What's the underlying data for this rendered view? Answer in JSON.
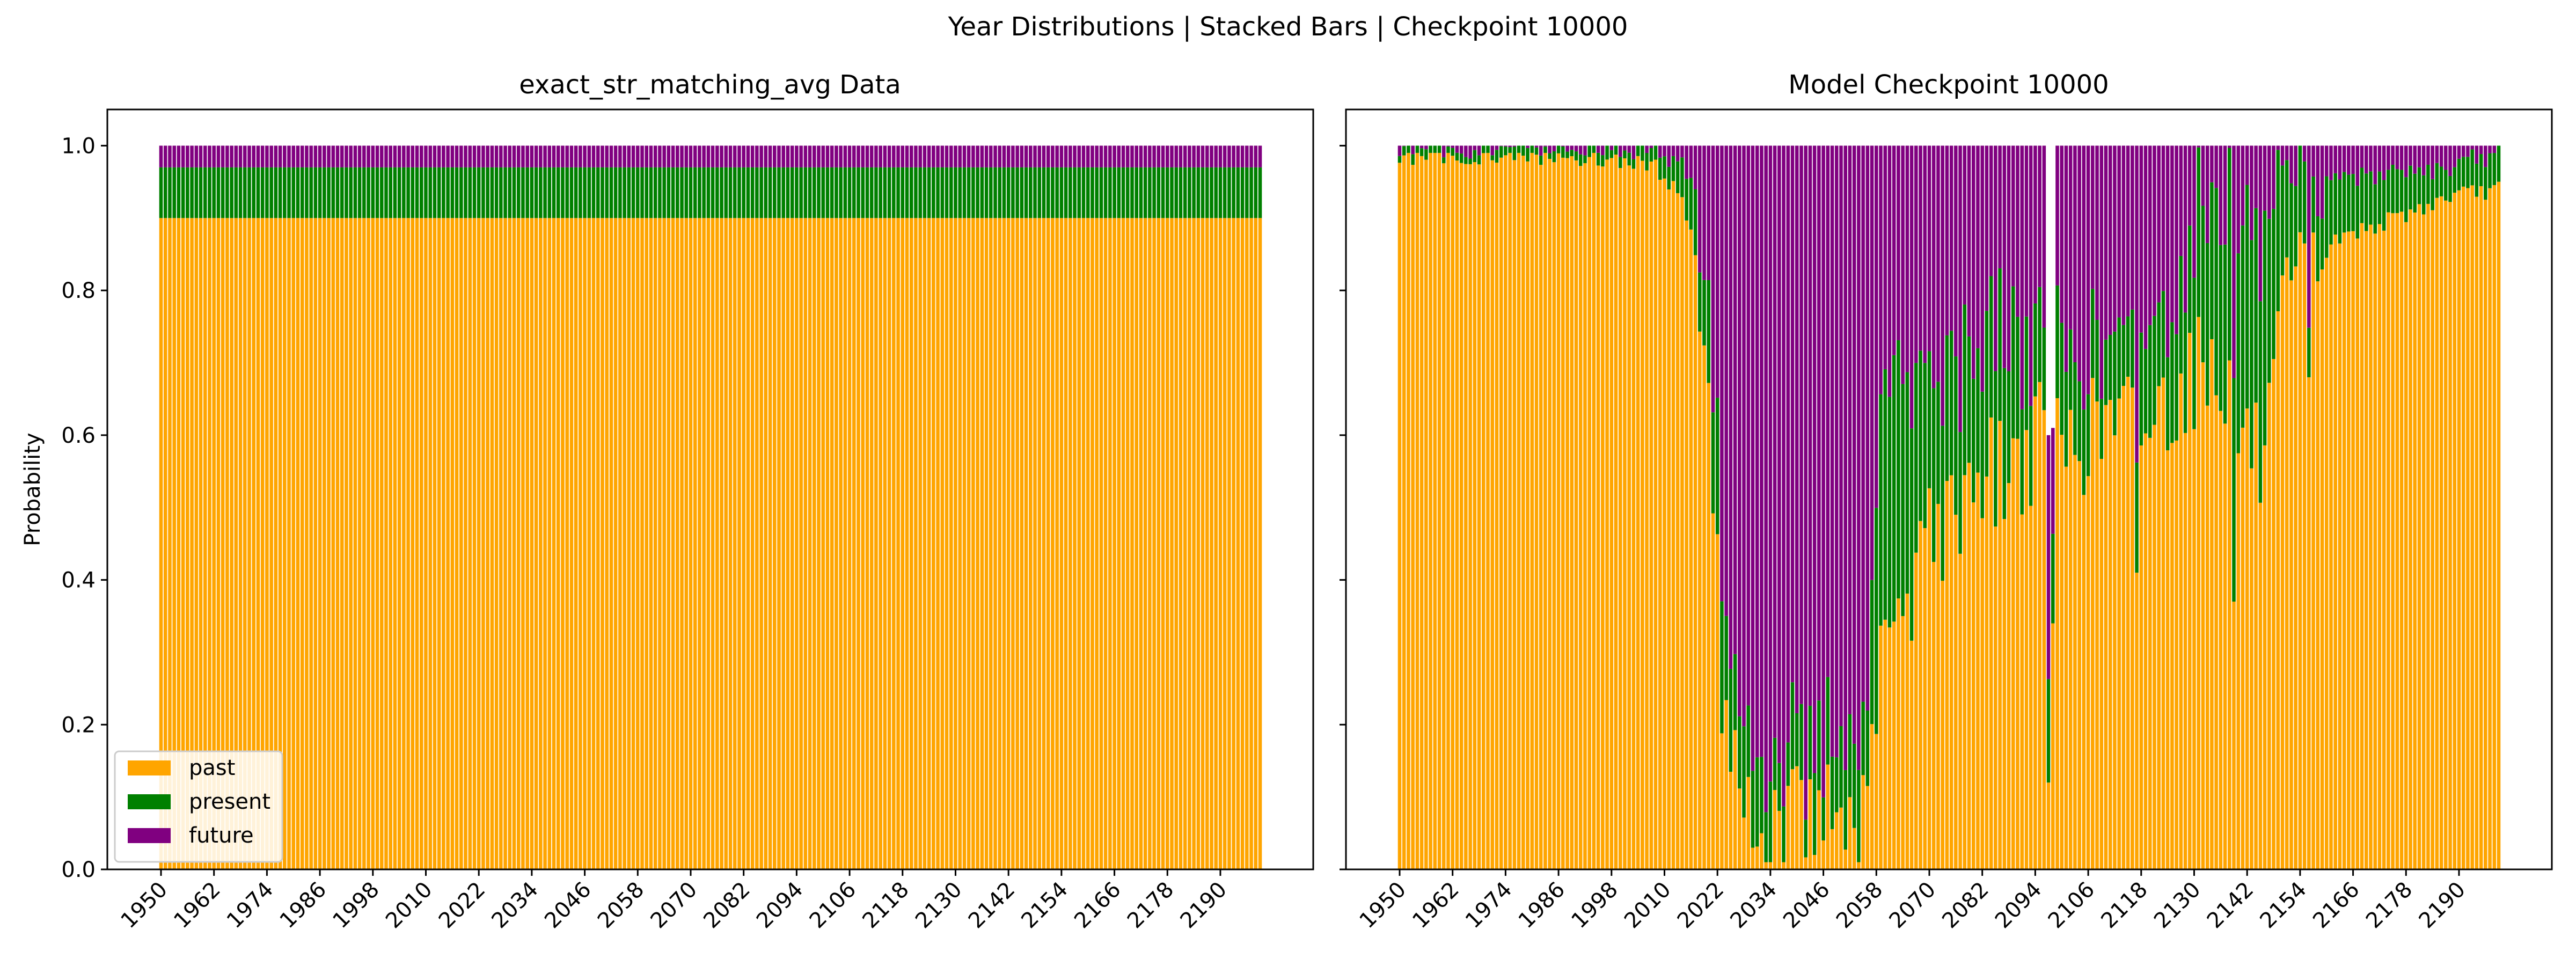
{
  "figure": {
    "suptitle": "Year Distributions | Stacked Bars | Checkpoint 10000"
  },
  "colors": {
    "past": "#ffa500",
    "present": "#008000",
    "future": "#800080"
  },
  "chart_data": [
    {
      "type": "bar",
      "stacked": true,
      "title": "exact_str_matching_avg Data",
      "xlabel": "",
      "ylabel": "Probability",
      "ylim": [
        0,
        1.05
      ],
      "yticks": [
        0.0,
        0.2,
        0.4,
        0.6,
        0.8,
        1.0
      ],
      "ytick_labels": [
        "0.0",
        "0.2",
        "0.4",
        "0.6",
        "0.8",
        "1.0"
      ],
      "xticks": [
        1950,
        1962,
        1974,
        1986,
        1998,
        2010,
        2022,
        2034,
        2046,
        2058,
        2070,
        2082,
        2094,
        2106,
        2118,
        2130,
        2142,
        2154,
        2166,
        2178,
        2190
      ],
      "year_range": [
        1950,
        2199
      ],
      "legend": {
        "position": "lower-left",
        "entries": [
          "past",
          "present",
          "future"
        ]
      },
      "series": [
        {
          "name": "past",
          "constant": 0.9
        },
        {
          "name": "present",
          "constant": 0.07
        },
        {
          "name": "future",
          "constant": 0.03
        }
      ]
    },
    {
      "type": "bar",
      "stacked": true,
      "title": "Model Checkpoint 10000",
      "xlabel": "",
      "ylabel": "",
      "ylim": [
        0,
        1.05
      ],
      "yticks": [
        0.0,
        0.2,
        0.4,
        0.6,
        0.8,
        1.0
      ],
      "xticks": [
        1950,
        1962,
        1974,
        1986,
        1998,
        2010,
        2022,
        2034,
        2046,
        2058,
        2070,
        2082,
        2094,
        2106,
        2118,
        2130,
        2142,
        2154,
        2166,
        2178,
        2190
      ],
      "year_range": [
        1950,
        2199
      ],
      "stack_order": [
        "past",
        "present",
        "future"
      ],
      "past_keypoints": [
        [
          1950,
          0.985
        ],
        [
          1980,
          0.985
        ],
        [
          2000,
          0.98
        ],
        [
          2008,
          0.97
        ],
        [
          2014,
          0.93
        ],
        [
          2018,
          0.82
        ],
        [
          2021,
          0.55
        ],
        [
          2023,
          0.25
        ],
        [
          2026,
          0.13
        ],
        [
          2030,
          0.08
        ],
        [
          2040,
          0.08
        ],
        [
          2050,
          0.07
        ],
        [
          2056,
          0.06
        ],
        [
          2058,
          0.25
        ],
        [
          2062,
          0.35
        ],
        [
          2066,
          0.32
        ],
        [
          2068,
          0.55
        ],
        [
          2072,
          0.45
        ],
        [
          2080,
          0.55
        ],
        [
          2088,
          0.55
        ],
        [
          2096,
          0.6
        ],
        [
          2100,
          0.58
        ],
        [
          2106,
          0.6
        ],
        [
          2112,
          0.62
        ],
        [
          2120,
          0.62
        ],
        [
          2126,
          0.66
        ],
        [
          2132,
          0.7
        ],
        [
          2136,
          0.7
        ],
        [
          2140,
          0.6
        ],
        [
          2142,
          0.6
        ],
        [
          2146,
          0.55
        ],
        [
          2150,
          0.75
        ],
        [
          2156,
          0.85
        ],
        [
          2166,
          0.88
        ],
        [
          2176,
          0.9
        ],
        [
          2188,
          0.93
        ],
        [
          2199,
          0.94
        ]
      ],
      "present_keypoints": [
        [
          1950,
          0.01
        ],
        [
          2000,
          0.015
        ],
        [
          2008,
          0.02
        ],
        [
          2014,
          0.05
        ],
        [
          2018,
          0.1
        ],
        [
          2021,
          0.15
        ],
        [
          2024,
          0.15
        ],
        [
          2030,
          0.1
        ],
        [
          2040,
          0.08
        ],
        [
          2050,
          0.1
        ],
        [
          2056,
          0.1
        ],
        [
          2058,
          0.3
        ],
        [
          2062,
          0.35
        ],
        [
          2066,
          0.3
        ],
        [
          2070,
          0.2
        ],
        [
          2080,
          0.2
        ],
        [
          2090,
          0.18
        ],
        [
          2100,
          0.12
        ],
        [
          2110,
          0.12
        ],
        [
          2120,
          0.12
        ],
        [
          2126,
          0.14
        ],
        [
          2130,
          0.2
        ],
        [
          2134,
          0.25
        ],
        [
          2140,
          0.28
        ],
        [
          2146,
          0.3
        ],
        [
          2150,
          0.15
        ],
        [
          2156,
          0.1
        ],
        [
          2166,
          0.08
        ],
        [
          2176,
          0.06
        ],
        [
          2188,
          0.04
        ],
        [
          2199,
          0.05
        ]
      ],
      "past_spikes": [
        [
          2030,
          0.03
        ],
        [
          2032,
          0.05
        ],
        [
          2044,
          0.02
        ],
        [
          2046,
          0.04
        ],
        [
          2097,
          0.12
        ],
        [
          2098,
          0.34
        ],
        [
          2117,
          0.41
        ],
        [
          2139,
          0.37
        ],
        [
          2156,
          0.68
        ]
      ],
      "sum_spikes": [
        [
          2097,
          0.6
        ],
        [
          2098,
          0.61
        ]
      ]
    }
  ]
}
